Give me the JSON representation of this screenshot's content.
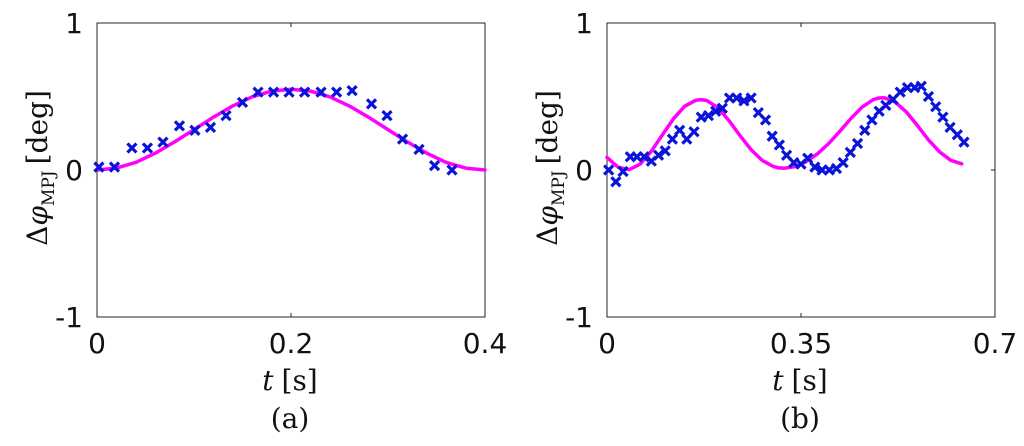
{
  "chart_data": [
    {
      "type": "scatter",
      "caption": "(a)",
      "xlabel": {
        "var": "t",
        "unit": "[s]"
      },
      "ylabel": {
        "prefix": "Δ",
        "sym": "φ",
        "sub": "MPJ",
        "unit": "[deg]"
      },
      "xlim": [
        0,
        0.4
      ],
      "ylim": [
        -1,
        1
      ],
      "xticks": [
        0,
        0.2,
        0.4
      ],
      "xtick_labels": [
        "0",
        "0.2",
        "0.4"
      ],
      "yticks": [
        -1,
        0,
        1
      ],
      "ytick_labels": [
        "-1",
        "0",
        "1"
      ],
      "grid": false,
      "colors": {
        "markers": "#0a14d8",
        "fit": "#ff00ff"
      },
      "series": [
        {
          "kind": "markers",
          "marker": "x",
          "points": [
            [
              0.002,
              0.02
            ],
            [
              0.018,
              0.02
            ],
            [
              0.036,
              0.15
            ],
            [
              0.052,
              0.15
            ],
            [
              0.068,
              0.19
            ],
            [
              0.085,
              0.3
            ],
            [
              0.101,
              0.27
            ],
            [
              0.117,
              0.29
            ],
            [
              0.133,
              0.37
            ],
            [
              0.15,
              0.46
            ],
            [
              0.166,
              0.53
            ],
            [
              0.182,
              0.53
            ],
            [
              0.198,
              0.53
            ],
            [
              0.214,
              0.53
            ],
            [
              0.231,
              0.53
            ],
            [
              0.247,
              0.53
            ],
            [
              0.263,
              0.54
            ],
            [
              0.283,
              0.45
            ],
            [
              0.299,
              0.37
            ],
            [
              0.315,
              0.21
            ],
            [
              0.332,
              0.14
            ],
            [
              0.348,
              0.03
            ],
            [
              0.366,
              0.0
            ]
          ]
        },
        {
          "kind": "line",
          "points": [
            [
              0.0,
              0.0
            ],
            [
              0.02,
              0.013
            ],
            [
              0.04,
              0.052
            ],
            [
              0.06,
              0.114
            ],
            [
              0.08,
              0.191
            ],
            [
              0.1,
              0.275
            ],
            [
              0.12,
              0.359
            ],
            [
              0.14,
              0.436
            ],
            [
              0.16,
              0.498
            ],
            [
              0.18,
              0.537
            ],
            [
              0.2,
              0.55
            ],
            [
              0.22,
              0.537
            ],
            [
              0.24,
              0.498
            ],
            [
              0.26,
              0.436
            ],
            [
              0.28,
              0.359
            ],
            [
              0.3,
              0.275
            ],
            [
              0.32,
              0.191
            ],
            [
              0.34,
              0.114
            ],
            [
              0.36,
              0.052
            ],
            [
              0.38,
              0.013
            ],
            [
              0.4,
              0.0
            ]
          ]
        }
      ]
    },
    {
      "type": "scatter",
      "caption": "(b)",
      "xlabel": {
        "var": "t",
        "unit": "[s]"
      },
      "ylabel": {
        "prefix": "Δ",
        "sym": "φ",
        "sub": "MPJ",
        "unit": "[deg]"
      },
      "xlim": [
        0,
        0.7
      ],
      "ylim": [
        -1,
        1
      ],
      "xticks": [
        0,
        0.35,
        0.7
      ],
      "xtick_labels": [
        "0",
        "0.35",
        "0.7"
      ],
      "yticks": [
        -1,
        0,
        1
      ],
      "ytick_labels": [
        "-1",
        "0",
        "1"
      ],
      "grid": false,
      "colors": {
        "markers": "#0a14d8",
        "fit": "#ff00ff"
      },
      "series": [
        {
          "kind": "markers",
          "marker": "x",
          "points": [
            [
              0.003,
              0.0
            ],
            [
              0.016,
              -0.08
            ],
            [
              0.029,
              -0.01
            ],
            [
              0.042,
              0.09
            ],
            [
              0.054,
              0.09
            ],
            [
              0.067,
              0.09
            ],
            [
              0.08,
              0.06
            ],
            [
              0.093,
              0.1
            ],
            [
              0.105,
              0.13
            ],
            [
              0.118,
              0.21
            ],
            [
              0.131,
              0.27
            ],
            [
              0.144,
              0.21
            ],
            [
              0.157,
              0.26
            ],
            [
              0.17,
              0.36
            ],
            [
              0.183,
              0.37
            ],
            [
              0.196,
              0.4
            ],
            [
              0.208,
              0.42
            ],
            [
              0.221,
              0.49
            ],
            [
              0.234,
              0.49
            ],
            [
              0.247,
              0.47
            ],
            [
              0.26,
              0.49
            ],
            [
              0.273,
              0.39
            ],
            [
              0.286,
              0.34
            ],
            [
              0.298,
              0.23
            ],
            [
              0.311,
              0.17
            ],
            [
              0.324,
              0.1
            ],
            [
              0.337,
              0.05
            ],
            [
              0.35,
              0.04
            ],
            [
              0.362,
              0.08
            ],
            [
              0.375,
              0.02
            ],
            [
              0.388,
              0.0
            ],
            [
              0.401,
              0.0
            ],
            [
              0.414,
              0.01
            ],
            [
              0.426,
              0.05
            ],
            [
              0.439,
              0.12
            ],
            [
              0.452,
              0.18
            ],
            [
              0.465,
              0.27
            ],
            [
              0.478,
              0.34
            ],
            [
              0.491,
              0.4
            ],
            [
              0.503,
              0.44
            ],
            [
              0.516,
              0.48
            ],
            [
              0.529,
              0.53
            ],
            [
              0.542,
              0.56
            ],
            [
              0.555,
              0.56
            ],
            [
              0.567,
              0.57
            ],
            [
              0.58,
              0.5
            ],
            [
              0.593,
              0.43
            ],
            [
              0.606,
              0.36
            ],
            [
              0.619,
              0.29
            ],
            [
              0.632,
              0.24
            ],
            [
              0.644,
              0.19
            ]
          ]
        },
        {
          "kind": "line",
          "points": [
            [
              0.0,
              0.086
            ],
            [
              0.02,
              0.019
            ],
            [
              0.04,
              0.002
            ],
            [
              0.06,
              0.041
            ],
            [
              0.08,
              0.128
            ],
            [
              0.1,
              0.239
            ],
            [
              0.12,
              0.349
            ],
            [
              0.14,
              0.433
            ],
            [
              0.16,
              0.474
            ],
            [
              0.17,
              0.479
            ],
            [
              0.18,
              0.473
            ],
            [
              0.2,
              0.424
            ],
            [
              0.22,
              0.337
            ],
            [
              0.24,
              0.234
            ],
            [
              0.26,
              0.138
            ],
            [
              0.28,
              0.065
            ],
            [
              0.3,
              0.024
            ],
            [
              0.31,
              0.014
            ],
            [
              0.32,
              0.012
            ],
            [
              0.34,
              0.024
            ],
            [
              0.36,
              0.058
            ],
            [
              0.38,
              0.111
            ],
            [
              0.4,
              0.18
            ],
            [
              0.42,
              0.263
            ],
            [
              0.44,
              0.35
            ],
            [
              0.46,
              0.427
            ],
            [
              0.48,
              0.478
            ],
            [
              0.49,
              0.49
            ],
            [
              0.5,
              0.492
            ],
            [
              0.52,
              0.462
            ],
            [
              0.54,
              0.395
            ],
            [
              0.56,
              0.303
            ],
            [
              0.58,
              0.205
            ],
            [
              0.6,
              0.123
            ],
            [
              0.62,
              0.066
            ],
            [
              0.64,
              0.042
            ]
          ]
        }
      ]
    }
  ]
}
